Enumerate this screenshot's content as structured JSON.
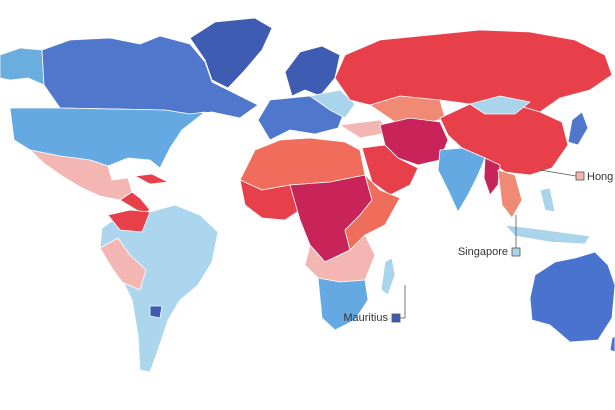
{
  "callouts": [
    {
      "label": "Hong K"
    },
    {
      "label": "Singapore"
    },
    {
      "label": "Mauritius"
    }
  ]
}
